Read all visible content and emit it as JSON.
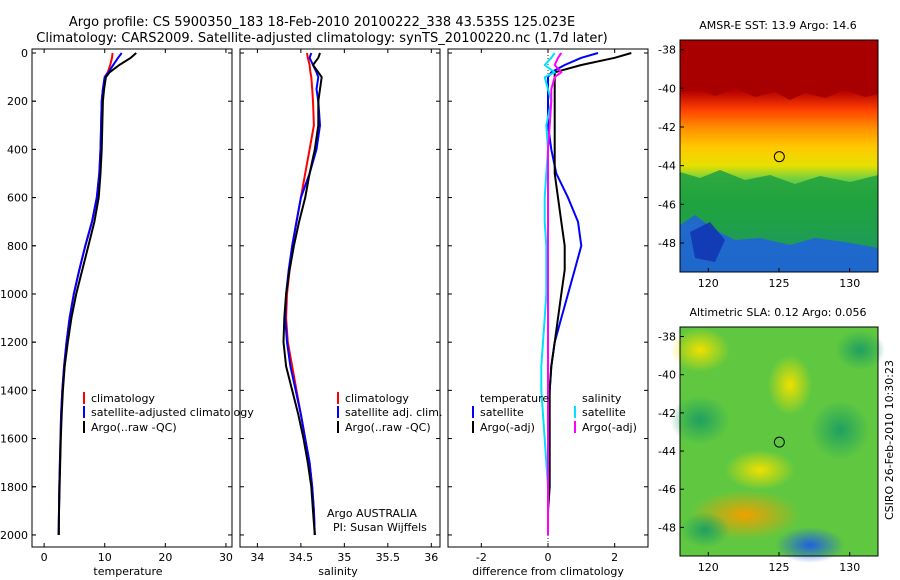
{
  "header": {
    "title_line1": "Argo profile: CS 5900350_183 18-Feb-2010 20100222_338 43.535S 125.023E",
    "title_line2": "Climatology: CARS2009. Satellite-adjusted climatology: synTS_20100220.nc (1.7d later)"
  },
  "side_label": "CSIRO 26-Feb-2010 10:30:23",
  "argo_note": {
    "line1": "Argo AUSTRALIA",
    "line2": "PI: Susan Wijffels"
  },
  "colors": {
    "climatology": "#ff0000",
    "satellite": "#0000ff",
    "argo": "#000000",
    "satellite_salinity_diff": "#00e0ff",
    "argo_salinity_diff": "#ff00ff"
  },
  "chart_data": [
    {
      "id": "temperature",
      "type": "line",
      "xlabel": "temperature",
      "ylabel": "",
      "xlim": [
        -2,
        31
      ],
      "ylim": [
        2050,
        0
      ],
      "xticks": [
        0,
        10,
        20,
        30
      ],
      "yticks": [
        0,
        200,
        400,
        600,
        800,
        1000,
        1200,
        1400,
        1600,
        1800,
        2000
      ],
      "legend": [
        "climatology",
        "satellite-adjusted climatology",
        "Argo(..raw -QC)"
      ],
      "depth": [
        0,
        20,
        50,
        80,
        100,
        150,
        200,
        300,
        400,
        500,
        600,
        700,
        800,
        900,
        1000,
        1100,
        1200,
        1300,
        1400,
        1500,
        1600,
        1700,
        1800,
        1900,
        2000
      ],
      "series": [
        {
          "name": "climatology",
          "color": "#ff0000",
          "values": [
            11.3,
            11.2,
            10.9,
            10.5,
            10.0,
            9.7,
            9.5,
            9.4,
            9.3,
            9.1,
            8.7,
            7.9,
            6.8,
            5.8,
            4.9,
            4.2,
            3.7,
            3.3,
            3.0,
            2.8,
            2.7,
            2.6,
            2.5,
            2.45,
            2.4
          ]
        },
        {
          "name": "satellite-adjusted climatology",
          "color": "#0000ff",
          "values": [
            12.8,
            12.2,
            11.4,
            10.6,
            10.0,
            9.7,
            9.5,
            9.4,
            9.3,
            9.1,
            8.7,
            7.9,
            6.8,
            5.8,
            4.9,
            4.2,
            3.7,
            3.3,
            3.0,
            2.8,
            2.7,
            2.6,
            2.5,
            2.45,
            2.4
          ]
        },
        {
          "name": "Argo(..raw -QC)",
          "color": "#000000",
          "values": [
            15.2,
            14.3,
            12.4,
            10.8,
            10.2,
            9.9,
            9.7,
            9.6,
            9.5,
            9.3,
            9.0,
            8.3,
            7.3,
            6.3,
            5.3,
            4.5,
            3.9,
            3.4,
            3.1,
            2.9,
            2.75,
            2.65,
            2.55,
            2.45,
            2.4
          ]
        }
      ]
    },
    {
      "id": "salinity",
      "type": "line",
      "xlabel": "salinity",
      "ylabel": "",
      "xlim": [
        33.8,
        36.1
      ],
      "ylim": [
        2050,
        0
      ],
      "xticks": [
        34,
        34.5,
        35,
        35.5,
        36
      ],
      "legend": [
        "climatology",
        "satellite adj. clim.",
        "Argo(..raw -QC)"
      ],
      "depth": [
        0,
        20,
        50,
        80,
        100,
        150,
        200,
        300,
        400,
        500,
        600,
        700,
        800,
        900,
        1000,
        1100,
        1200,
        1300,
        1400,
        1500,
        1600,
        1700,
        1800,
        1900,
        2000
      ],
      "series": [
        {
          "name": "climatology",
          "color": "#ff0000",
          "values": [
            34.57,
            34.58,
            34.6,
            34.61,
            34.62,
            34.63,
            34.64,
            34.65,
            34.6,
            34.55,
            34.5,
            34.45,
            34.4,
            34.37,
            34.34,
            34.33,
            34.35,
            34.4,
            34.45,
            34.5,
            34.55,
            34.6,
            34.63,
            34.65,
            34.66
          ]
        },
        {
          "name": "satellite adj. clim.",
          "color": "#0000ff",
          "values": [
            34.62,
            34.6,
            34.64,
            34.68,
            34.7,
            34.68,
            34.7,
            34.72,
            34.68,
            34.6,
            34.5,
            34.45,
            34.4,
            34.36,
            34.33,
            34.32,
            34.34,
            34.38,
            34.44,
            34.5,
            34.55,
            34.6,
            34.63,
            34.65,
            34.66
          ]
        },
        {
          "name": "Argo(..raw -QC)",
          "color": "#000000",
          "values": [
            34.72,
            34.7,
            34.64,
            34.7,
            34.74,
            34.72,
            34.7,
            34.7,
            34.66,
            34.6,
            34.55,
            34.48,
            34.42,
            34.37,
            34.33,
            34.31,
            34.3,
            34.33,
            34.4,
            34.47,
            34.53,
            34.58,
            34.62,
            34.64,
            34.66
          ]
        }
      ]
    },
    {
      "id": "difference",
      "type": "line",
      "xlabel": "difference from climatology",
      "ylabel": "",
      "xlim": [
        -3,
        3
      ],
      "ylim": [
        2050,
        0
      ],
      "xticks": [
        -2,
        0,
        2
      ],
      "legend_left_title": "temperature",
      "legend_right_title": "salinity",
      "legend": [
        "satellite",
        "Argo(-adj)",
        "satellite",
        "Argo(-adj)"
      ],
      "depth": [
        0,
        20,
        50,
        80,
        100,
        150,
        200,
        300,
        400,
        500,
        600,
        700,
        800,
        900,
        1000,
        1100,
        1200,
        1300,
        1400,
        1500,
        1600,
        1700,
        1800,
        1900,
        2000
      ],
      "series": [
        {
          "name": "temperature satellite",
          "color": "#0000ff",
          "values": [
            1.5,
            1.0,
            0.5,
            0.1,
            0.0,
            0.0,
            0.0,
            0.0,
            0.1,
            0.25,
            0.6,
            0.9,
            1.0,
            0.8,
            0.6,
            0.4,
            0.2,
            0.1,
            0.05,
            0.02,
            0.0,
            0.0,
            0.0,
            0.0,
            0.0
          ]
        },
        {
          "name": "temperature Argo(-adj)",
          "color": "#000000",
          "values": [
            2.5,
            2.0,
            1.0,
            0.2,
            0.2,
            0.2,
            0.2,
            0.2,
            0.2,
            0.2,
            0.3,
            0.4,
            0.5,
            0.5,
            0.4,
            0.3,
            0.2,
            0.1,
            0.05,
            0.05,
            0.05,
            0.05,
            0.05,
            0.0,
            0.0
          ]
        },
        {
          "name": "salinity satellite",
          "color": "#00e0ff",
          "values": [
            0.2,
            0.1,
            -0.1,
            0.2,
            -0.1,
            0.0,
            0.1,
            -0.05,
            0.0,
            -0.05,
            -0.1,
            -0.1,
            -0.05,
            -0.05,
            -0.05,
            -0.1,
            -0.15,
            -0.2,
            -0.2,
            -0.15,
            -0.1,
            -0.05,
            0.0,
            0.0,
            0.0
          ]
        },
        {
          "name": "salinity Argo(-adj)",
          "color": "#ff00ff",
          "values": [
            0.4,
            0.3,
            0.2,
            0.4,
            0.2,
            0.1,
            0.1,
            0.05,
            0.0,
            0.0,
            0.0,
            0.0,
            0.0,
            0.0,
            0.0,
            0.0,
            0.0,
            0.0,
            0.0,
            0.0,
            0.0,
            0.0,
            0.0,
            0.0,
            0.0
          ]
        }
      ]
    },
    {
      "id": "sst_map",
      "type": "heatmap",
      "title": "AMSR-E SST: 13.9 Argo: 14.6",
      "xlim": [
        118,
        132
      ],
      "ylim": [
        -49.5,
        -37.5
      ],
      "xticks": [
        120,
        125,
        130
      ],
      "yticks": [
        -38,
        -40,
        -42,
        -44,
        -46,
        -48
      ],
      "marker": {
        "lon": 125.023,
        "lat": -43.535
      }
    },
    {
      "id": "sla_map",
      "type": "heatmap",
      "title": "Altimetric SLA: 0.12 Argo: 0.056",
      "xlim": [
        118,
        132
      ],
      "ylim": [
        -49.5,
        -37.5
      ],
      "xticks": [
        120,
        125,
        130
      ],
      "yticks": [
        -38,
        -40,
        -42,
        -44,
        -46,
        -48
      ],
      "marker": {
        "lon": 125.023,
        "lat": -43.535
      }
    }
  ]
}
